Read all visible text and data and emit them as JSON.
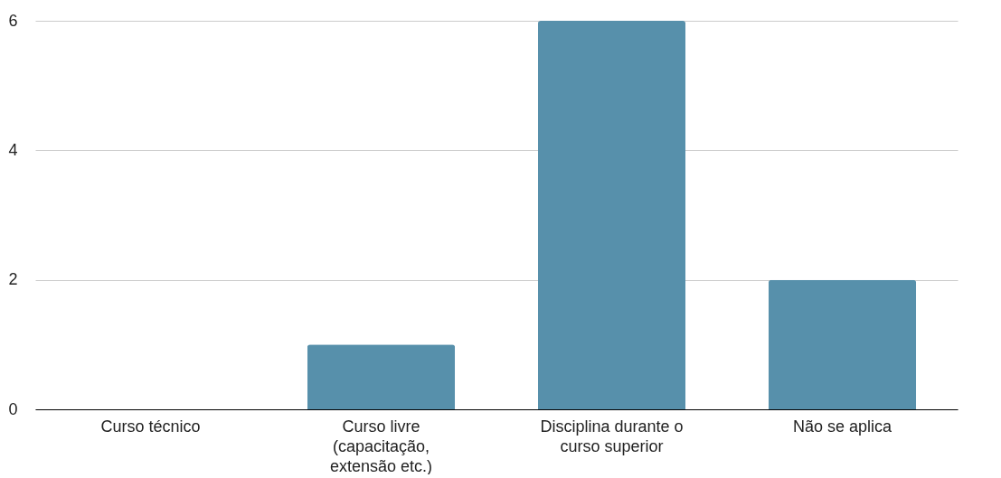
{
  "chart_data": {
    "type": "bar",
    "categories": [
      "Curso técnico",
      "Curso livre (capacitação, extensão etc.)",
      "Disciplina durante o curso superior",
      "Não se aplica"
    ],
    "values": [
      0,
      1,
      6,
      2
    ],
    "color": "#5790ab",
    "ylim": [
      0,
      6
    ],
    "yticks": [
      0,
      2,
      4,
      6
    ],
    "grid": "y"
  }
}
